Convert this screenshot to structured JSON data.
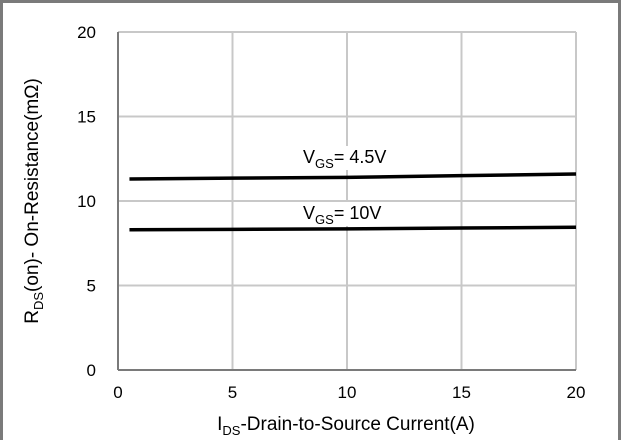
{
  "chart_data": {
    "type": "line",
    "xlabel": {
      "main": "I",
      "sub": "DS",
      "rest": "-Drain-to-Source  Current(A)"
    },
    "ylabel": {
      "main": "R",
      "sub": "DS",
      "rest": "(on)- On-Resistance(mΩ)"
    },
    "xlim": [
      0,
      20
    ],
    "ylim": [
      0,
      20
    ],
    "xticks": [
      0,
      5,
      10,
      15,
      20
    ],
    "yticks": [
      0,
      5,
      10,
      15,
      20
    ],
    "grid": true,
    "series": [
      {
        "name": "V_GS= 4.5V",
        "label": {
          "main": "V",
          "sub": "GS",
          "rest": "= 4.5V"
        },
        "x": [
          0.5,
          5,
          10,
          15,
          20
        ],
        "y": [
          11.3,
          11.35,
          11.4,
          11.5,
          11.6
        ],
        "color": "#000000"
      },
      {
        "name": "V_GS= 10V",
        "label": {
          "main": "V",
          "sub": "GS",
          "rest": "= 10V"
        },
        "x": [
          0.5,
          5,
          10,
          15,
          20
        ],
        "y": [
          8.3,
          8.32,
          8.35,
          8.4,
          8.45
        ],
        "color": "#000000"
      }
    ]
  }
}
